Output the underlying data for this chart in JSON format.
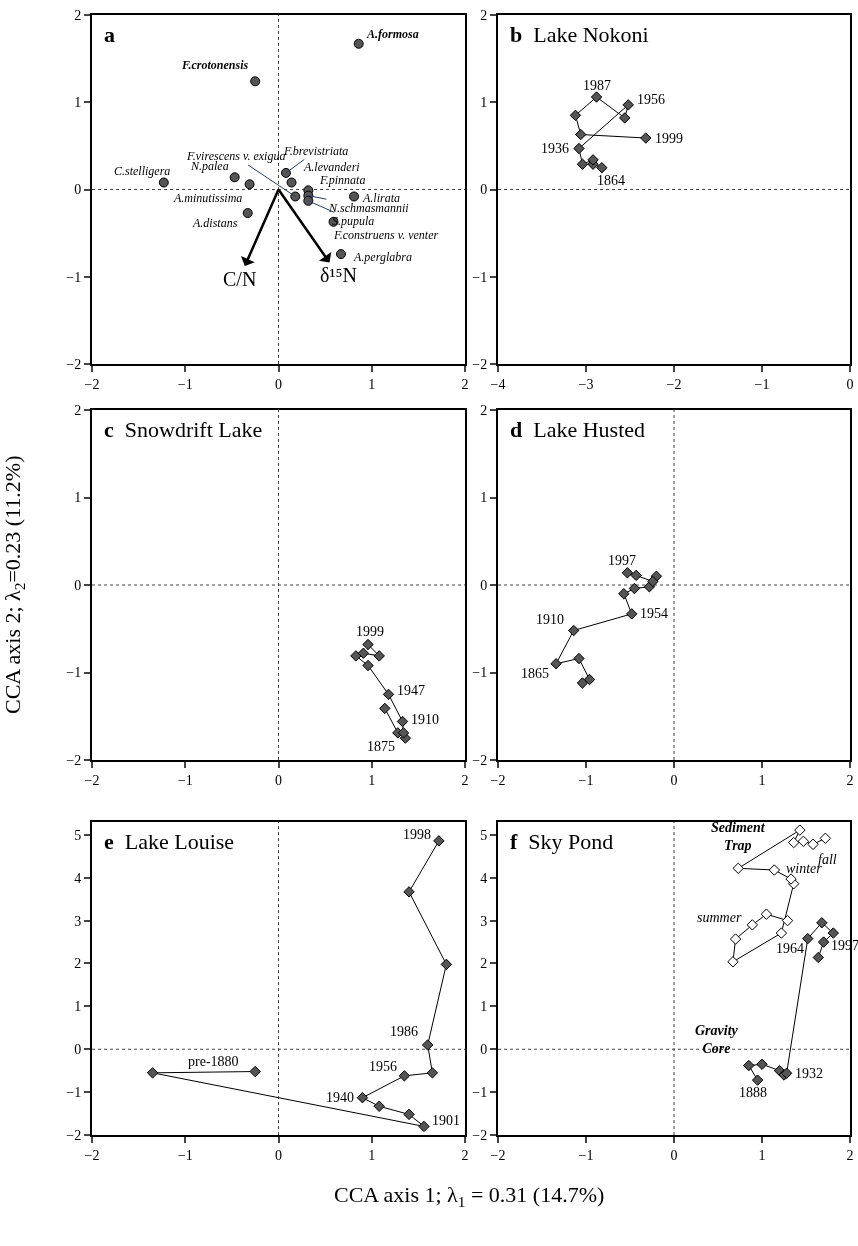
{
  "chart_data": [
    {
      "type": "scatter",
      "title": "a",
      "xlim": [
        -2,
        2
      ],
      "ylim": [
        -2,
        2
      ],
      "xticks": [
        -2,
        -1,
        0,
        1,
        2
      ],
      "yticks": [
        -2,
        -1,
        0,
        1,
        2
      ],
      "marker": "circle",
      "grid": false,
      "ref_lines": [
        {
          "axis": "x",
          "value": 0,
          "line_style": "dotted"
        },
        {
          "axis": "y",
          "value": 0,
          "line_style": "dotted"
        }
      ],
      "series": [
        {
          "color": "#555555",
          "x": [
            0.86,
            -0.25,
            -1.23,
            -0.47,
            -0.31,
            -0.33,
            0.18,
            0.08,
            0.14,
            0.32,
            0.81,
            0.32,
            0.32,
            0.59,
            0.67
          ],
          "values": [
            1.67,
            1.24,
            0.08,
            0.14,
            0.06,
            -0.27,
            -0.08,
            0.19,
            0.08,
            -0.01,
            -0.08,
            -0.07,
            -0.13,
            -0.37,
            -0.74
          ]
        }
      ],
      "annotations": [
        {
          "text": "A.formosa",
          "x": 0.86,
          "y": 1.67
        },
        {
          "text": "F.crotonensis",
          "x": -0.25,
          "y": 1.24
        },
        {
          "text": "C.stelligera",
          "x": -1.23,
          "y": 0.08
        },
        {
          "text": "N.palea",
          "x": -0.47,
          "y": 0.14
        },
        {
          "text": "A.minutissima",
          "x": -0.31,
          "y": 0.06
        },
        {
          "text": "A.distans",
          "x": -0.33,
          "y": -0.27
        },
        {
          "text": "F.virescens v. exigua",
          "x": 0.18,
          "y": -0.08
        },
        {
          "text": "F.brevistriata",
          "x": 0.08,
          "y": 0.19
        },
        {
          "text": "A.levanderi",
          "x": 0.14,
          "y": 0.08
        },
        {
          "text": "F.pinnata",
          "x": 0.32,
          "y": -0.01
        },
        {
          "text": "A.lirata",
          "x": 0.81,
          "y": -0.08
        },
        {
          "text": "N.schmasmannii",
          "x": 0.32,
          "y": -0.07
        },
        {
          "text": "S.pupula",
          "x": 0.32,
          "y": -0.13
        },
        {
          "text": "F.construens v. venter",
          "x": 0.59,
          "y": -0.37
        },
        {
          "text": "A.perglabra",
          "x": 0.67,
          "y": -0.74
        },
        "C/N",
        "δ¹⁵N"
      ]
    },
    {
      "type": "line",
      "title": "b Lake Nokoni",
      "xlim": [
        -4,
        0
      ],
      "ylim": [
        -2,
        2
      ],
      "xticks": [
        -4,
        -3,
        -2,
        -1,
        0
      ],
      "yticks": [
        -2,
        -1,
        0,
        1,
        2
      ],
      "marker": "diamond",
      "grid": false,
      "ref_lines": [
        {
          "axis": "y",
          "value": 0,
          "line_style": "dotted"
        }
      ],
      "series": [
        {
          "color": "#555555",
          "x": [
            -2.82,
            -2.92,
            -2.92,
            -3.04,
            -3.08,
            -2.52,
            -2.56,
            -2.88,
            -3.12,
            -3.06,
            -2.32
          ],
          "values": [
            0.25,
            0.29,
            0.34,
            0.29,
            0.47,
            0.97,
            0.82,
            1.06,
            0.85,
            0.63,
            0.59
          ]
        }
      ],
      "annotations": [
        {
          "text": "1864",
          "x": -2.82,
          "y": 0.25
        },
        {
          "text": "1936",
          "x": -3.08,
          "y": 0.47
        },
        {
          "text": "1956",
          "x": -2.52,
          "y": 0.97
        },
        {
          "text": "1987",
          "x": -2.88,
          "y": 1.06
        },
        {
          "text": "1999",
          "x": -2.32,
          "y": 0.59
        }
      ]
    },
    {
      "type": "line",
      "title": "c Snowdrift Lake",
      "ylabel": "CCA axis 2; λ$_{2}$=0.23 (11.2%)",
      "xlim": [
        -2,
        2
      ],
      "ylim": [
        -2,
        2
      ],
      "xticks": [
        -2,
        -1,
        0,
        1,
        2
      ],
      "yticks": [
        -2,
        -1,
        0,
        1,
        2
      ],
      "marker": "diamond",
      "grid": false,
      "ref_lines": [
        {
          "axis": "x",
          "value": 0,
          "line_style": "dotted"
        },
        {
          "axis": "y",
          "value": 0,
          "line_style": "dotted"
        }
      ],
      "series": [
        {
          "color": "#555555",
          "x": [
            1.14,
            1.28,
            1.36,
            1.34,
            1.33,
            1.18,
            0.96,
            0.83,
            0.91,
            1.08,
            0.96
          ],
          "values": [
            -1.41,
            -1.69,
            -1.75,
            -1.69,
            -1.56,
            -1.25,
            -0.92,
            -0.81,
            -0.78,
            -0.81,
            -0.68
          ]
        }
      ],
      "annotations": [
        {
          "text": "1999",
          "x": 0.96,
          "y": -0.68
        },
        {
          "text": "1947",
          "x": 1.18,
          "y": -1.25
        },
        {
          "text": "1910",
          "x": 1.33,
          "y": -1.56
        },
        {
          "text": "1875",
          "x": 1.36,
          "y": -1.75
        }
      ]
    },
    {
      "type": "line",
      "title": "d Lake Husted",
      "xlim": [
        -2,
        2
      ],
      "ylim": [
        -2,
        2
      ],
      "xticks": [
        -2,
        -1,
        0,
        1,
        2
      ],
      "yticks": [
        -2,
        -1,
        0,
        1,
        2
      ],
      "marker": "diamond",
      "grid": false,
      "ref_lines": [
        {
          "axis": "x",
          "value": 0,
          "line_style": "dotted"
        },
        {
          "axis": "y",
          "value": 0,
          "line_style": "dotted"
        }
      ],
      "series": [
        {
          "color": "#555555",
          "x": [
            -1.04,
            -0.96,
            -1.08,
            -1.34,
            -1.14,
            -0.48,
            -0.57,
            -0.45,
            -0.28,
            -0.2,
            -0.24,
            -0.43,
            -0.53
          ],
          "values": [
            -1.12,
            -1.08,
            -0.84,
            -0.9,
            -0.52,
            -0.33,
            -0.1,
            -0.04,
            -0.02,
            0.1,
            0.04,
            0.11,
            0.14
          ]
        }
      ],
      "annotations": [
        {
          "text": "1997",
          "x": -0.53,
          "y": 0.14
        },
        {
          "text": "1954",
          "x": -0.48,
          "y": -0.33
        },
        {
          "text": "1910",
          "x": -1.14,
          "y": -0.52
        },
        {
          "text": "1865",
          "x": -1.34,
          "y": -0.9
        }
      ]
    },
    {
      "type": "line",
      "title": "e Lake Louise",
      "xlabel": "CCA axis 1; λ$_{1}$ = 0.31 (14.7%)",
      "xlim": [
        -2,
        2
      ],
      "ylim": [
        -2,
        5.3
      ],
      "xticks": [
        -2,
        -1,
        0,
        1,
        2
      ],
      "yticks": [
        -2,
        -1,
        0,
        1,
        2,
        3,
        4,
        5
      ],
      "marker": "diamond",
      "grid": false,
      "ref_lines": [
        {
          "axis": "x",
          "value": 0,
          "line_style": "dotted"
        },
        {
          "axis": "y",
          "value": 0,
          "line_style": "dotted"
        }
      ],
      "series": [
        {
          "color": "#555555",
          "x": [
            -0.25,
            -1.35,
            1.56,
            1.4,
            1.08,
            0.9,
            1.35,
            1.65,
            1.6,
            1.8,
            1.4,
            1.72
          ],
          "values": [
            -0.52,
            -0.55,
            -1.8,
            -1.52,
            -1.33,
            -1.13,
            -0.62,
            -0.55,
            0.1,
            1.98,
            3.67,
            4.86
          ]
        }
      ],
      "annotations": [
        {
          "text": "1998",
          "x": 1.72,
          "y": 4.86
        },
        {
          "text": "1986",
          "x": 1.6,
          "y": 0.1
        },
        {
          "text": "1956",
          "x": 1.35,
          "y": -0.62
        },
        {
          "text": "1940",
          "x": 0.9,
          "y": -1.13
        },
        {
          "text": "1901",
          "x": 1.56,
          "y": -1.8
        },
        {
          "text": "pre-1880",
          "x": -0.25,
          "y": -0.52
        }
      ]
    },
    {
      "type": "line",
      "title": "f Sky Pond",
      "xlim": [
        -2,
        2
      ],
      "ylim": [
        -2,
        5.3
      ],
      "xticks": [
        -2,
        -1,
        0,
        1,
        2
      ],
      "yticks": [
        -2,
        -1,
        0,
        1,
        2,
        3,
        4,
        5
      ],
      "marker": "diamond",
      "grid": false,
      "ref_lines": [
        {
          "axis": "x",
          "value": 0,
          "line_style": "dotted"
        },
        {
          "axis": "y",
          "value": 0,
          "line_style": "dotted"
        }
      ],
      "series": [
        {
          "name": "Sediment Trap",
          "color": "#ffffff",
          "x": [
            1.29,
            1.05,
            0.89,
            0.7,
            0.67,
            1.22,
            1.36,
            1.33,
            1.14,
            0.73,
            1.43,
            1.36,
            1.47,
            1.58,
            1.72
          ],
          "values": [
            3.0,
            3.15,
            2.9,
            2.57,
            2.04,
            2.71,
            3.86,
            3.97,
            4.18,
            4.22,
            5.11,
            4.82,
            4.85,
            4.78,
            4.92
          ]
        },
        {
          "name": "Gravity Core",
          "color": "#555555",
          "x": [
            0.95,
            0.85,
            1.0,
            1.2,
            1.25,
            1.28,
            1.52,
            1.68,
            1.81,
            1.7,
            1.64
          ],
          "values": [
            -0.72,
            -0.38,
            -0.35,
            -0.5,
            -0.6,
            -0.56,
            2.58,
            2.95,
            2.71,
            2.5,
            2.14
          ]
        }
      ],
      "annotations": [
        {
          "text": "fall",
          "x": 1.58,
          "y": 4.78
        },
        {
          "text": "winter",
          "x": 1.14,
          "y": 4.18
        },
        {
          "text": "summer",
          "x": 0.89,
          "y": 2.9
        },
        {
          "text": "1964",
          "x": 1.52,
          "y": 2.58
        },
        {
          "text": "1997",
          "x": 1.7,
          "y": 2.5
        },
        {
          "text": "1932",
          "x": 1.28,
          "y": -0.56
        },
        {
          "text": "1888",
          "x": 0.95,
          "y": -0.72
        }
      ]
    }
  ]
}
